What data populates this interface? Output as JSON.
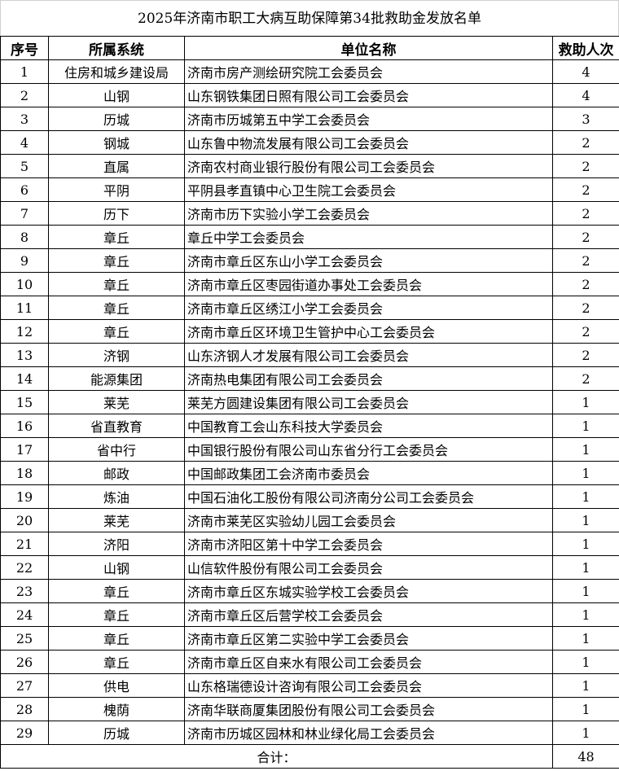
{
  "title": "2025年济南市职工大病互助保障第34批救助金发放名单",
  "headers": {
    "no": "序号",
    "system": "所属系统",
    "unit": "单位名称",
    "count": "救助人次"
  },
  "rows": [
    {
      "no": "1",
      "system": "住房和城乡建设局",
      "unit": "济南市房产测绘研究院工会委员会",
      "count": "4"
    },
    {
      "no": "2",
      "system": "山钢",
      "unit": "山东钢铁集团日照有限公司工会委员会",
      "count": "4"
    },
    {
      "no": "3",
      "system": "历城",
      "unit": "济南市历城第五中学工会委员会",
      "count": "3"
    },
    {
      "no": "4",
      "system": "钢城",
      "unit": "山东鲁中物流发展有限公司工会委员会",
      "count": "2"
    },
    {
      "no": "5",
      "system": "直属",
      "unit": "济南农村商业银行股份有限公司工会委员会",
      "count": "2"
    },
    {
      "no": "6",
      "system": "平阴",
      "unit": "平阴县孝直镇中心卫生院工会委员会",
      "count": "2"
    },
    {
      "no": "7",
      "system": "历下",
      "unit": "济南市历下实验小学工会委员会",
      "count": "2"
    },
    {
      "no": "8",
      "system": "章丘",
      "unit": "章丘中学工会委员会",
      "count": "2"
    },
    {
      "no": "9",
      "system": "章丘",
      "unit": "济南市章丘区东山小学工会委员会",
      "count": "2"
    },
    {
      "no": "10",
      "system": "章丘",
      "unit": "济南市章丘区枣园街道办事处工会委员会",
      "count": "2"
    },
    {
      "no": "11",
      "system": "章丘",
      "unit": "济南市章丘区绣江小学工会委员会",
      "count": "2"
    },
    {
      "no": "12",
      "system": "章丘",
      "unit": "济南市章丘区环境卫生管护中心工会委员会",
      "count": "2"
    },
    {
      "no": "13",
      "system": "济钢",
      "unit": "山东济钢人才发展有限公司工会委员会",
      "count": "2"
    },
    {
      "no": "14",
      "system": "能源集团",
      "unit": "济南热电集团有限公司工会委员会",
      "count": "2"
    },
    {
      "no": "15",
      "system": "莱芜",
      "unit": "莱芜方圆建设集团有限公司工会委员会",
      "count": "1"
    },
    {
      "no": "16",
      "system": "省直教育",
      "unit": "中国教育工会山东科技大学委员会",
      "count": "1"
    },
    {
      "no": "17",
      "system": "省中行",
      "unit": "中国银行股份有限公司山东省分行工会委员会",
      "count": "1"
    },
    {
      "no": "18",
      "system": "邮政",
      "unit": "中国邮政集团工会济南市委员会",
      "count": "1"
    },
    {
      "no": "19",
      "system": "炼油",
      "unit": "中国石油化工股份有限公司济南分公司工会委员会",
      "count": "1"
    },
    {
      "no": "20",
      "system": "莱芜",
      "unit": "济南市莱芜区实验幼儿园工会委员会",
      "count": "1"
    },
    {
      "no": "21",
      "system": "济阳",
      "unit": "济南市济阳区第十中学工会委员会",
      "count": "1"
    },
    {
      "no": "22",
      "system": "山钢",
      "unit": "山信软件股份有限公司工会委员会",
      "count": "1"
    },
    {
      "no": "23",
      "system": "章丘",
      "unit": "济南市章丘区东城实验学校工会委员会",
      "count": "1"
    },
    {
      "no": "24",
      "system": "章丘",
      "unit": "济南市章丘区后营学校工会委员会",
      "count": "1"
    },
    {
      "no": "25",
      "system": "章丘",
      "unit": "济南市章丘区第二实验中学工会委员会",
      "count": "1"
    },
    {
      "no": "26",
      "system": "章丘",
      "unit": "济南市章丘区自来水有限公司工会委员会",
      "count": "1"
    },
    {
      "no": "27",
      "system": "供电",
      "unit": "山东格瑞德设计咨询有限公司工会委员会",
      "count": "1"
    },
    {
      "no": "28",
      "system": "槐荫",
      "unit": "济南华联商厦集团股份有限公司工会委员会",
      "count": "1"
    },
    {
      "no": "29",
      "system": "历城",
      "unit": "济南市历城区园林和林业绿化局工会委员会",
      "count": "1"
    }
  ],
  "total": {
    "label": "合计：",
    "value": "48"
  }
}
